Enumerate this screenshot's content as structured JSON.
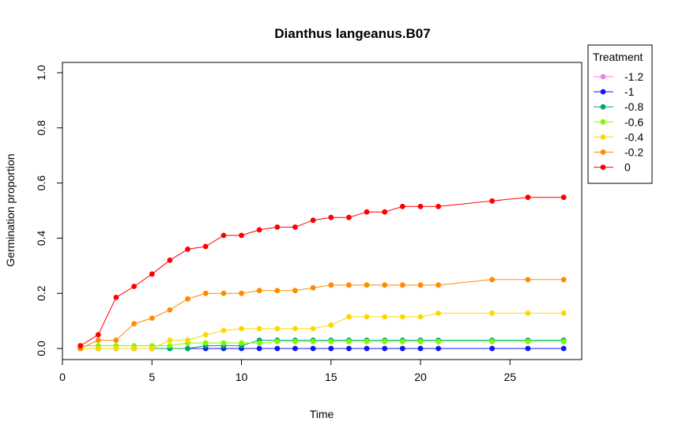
{
  "chart_data": {
    "type": "line",
    "title": "Dianthus langeanus.B07",
    "xlabel": "Time",
    "ylabel": "Germination proportion",
    "xlim": [
      0,
      28
    ],
    "ylim": [
      0,
      1.0
    ],
    "x_ticks": [
      "0",
      "5",
      "10",
      "15",
      "20",
      "25"
    ],
    "y_ticks": [
      "0.0",
      "0.2",
      "0.4",
      "0.6",
      "0.8",
      "1.0"
    ],
    "grid": false,
    "legend": {
      "title": "Treatment",
      "placement": "top-right outside"
    },
    "x": [
      1,
      2,
      3,
      4,
      5,
      6,
      7,
      8,
      9,
      10,
      11,
      12,
      13,
      14,
      15,
      16,
      17,
      18,
      19,
      20,
      21,
      24,
      26,
      28
    ],
    "series": [
      {
        "name": "-1.2",
        "color": "#EE82EE",
        "values": [
          0.0,
          0.0,
          0.0,
          0.0,
          0.0,
          0.0,
          0.0,
          0.0,
          0.0,
          0.0,
          0.0,
          0.0,
          0.0,
          0.0,
          0.0,
          0.0,
          0.0,
          0.0,
          0.0,
          0.0,
          0.0,
          0.0,
          0.0,
          0.0
        ]
      },
      {
        "name": "-1",
        "color": "#1414FF",
        "values": [
          0.0,
          0.0,
          0.0,
          0.0,
          0.0,
          0.0,
          0.0,
          0.0,
          0.0,
          0.0,
          0.0,
          0.0,
          0.0,
          0.0,
          0.0,
          0.0,
          0.0,
          0.0,
          0.0,
          0.0,
          0.0,
          0.0,
          0.0,
          0.0
        ]
      },
      {
        "name": "-0.8",
        "color": "#00A86B",
        "values": [
          0.0,
          0.0,
          0.0,
          0.0,
          0.0,
          0.0,
          0.0,
          0.01,
          0.01,
          0.01,
          0.03,
          0.03,
          0.03,
          0.03,
          0.03,
          0.03,
          0.03,
          0.03,
          0.03,
          0.03,
          0.03,
          0.03,
          0.03,
          0.03
        ]
      },
      {
        "name": "-0.6",
        "color": "#7CFC00",
        "values": [
          0.01,
          0.01,
          0.01,
          0.01,
          0.01,
          0.01,
          0.02,
          0.02,
          0.02,
          0.02,
          0.02,
          0.025,
          0.025,
          0.025,
          0.025,
          0.025,
          0.025,
          0.025,
          0.025,
          0.025,
          0.025,
          0.025,
          0.025,
          0.025
        ]
      },
      {
        "name": "-0.4",
        "color": "#FFD700",
        "values": [
          0.0,
          0.0,
          0.0,
          0.0,
          0.0,
          0.03,
          0.03,
          0.05,
          0.065,
          0.072,
          0.072,
          0.072,
          0.072,
          0.072,
          0.085,
          0.115,
          0.115,
          0.115,
          0.115,
          0.115,
          0.128,
          0.128,
          0.128,
          0.128
        ]
      },
      {
        "name": "-0.2",
        "color": "#FF8C00",
        "values": [
          0.0,
          0.03,
          0.03,
          0.09,
          0.11,
          0.14,
          0.18,
          0.2,
          0.2,
          0.2,
          0.21,
          0.21,
          0.21,
          0.22,
          0.23,
          0.23,
          0.23,
          0.23,
          0.23,
          0.23,
          0.23,
          0.25,
          0.25,
          0.25
        ]
      },
      {
        "name": "0",
        "color": "#FF0000",
        "values": [
          0.01,
          0.05,
          0.185,
          0.225,
          0.27,
          0.32,
          0.36,
          0.37,
          0.41,
          0.41,
          0.43,
          0.44,
          0.44,
          0.465,
          0.475,
          0.475,
          0.495,
          0.495,
          0.515,
          0.515,
          0.515,
          0.535,
          0.548,
          0.548
        ]
      }
    ]
  }
}
